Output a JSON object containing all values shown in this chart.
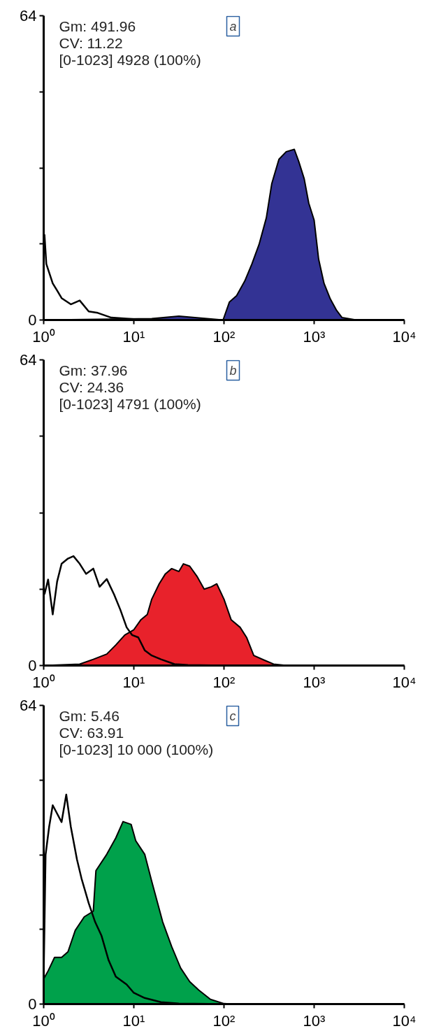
{
  "chart_data": [
    {
      "type": "area",
      "title": "a",
      "annotations": [
        "Gm: 491.96",
        "CV: 11.22",
        "[0-1023] 4928 (100%)"
      ],
      "log": "x",
      "xlim": [
        1,
        10000
      ],
      "ylim": [
        0,
        64
      ],
      "xticks": [
        {
          "value": 1,
          "label": "10⁰"
        },
        {
          "value": 10,
          "label": "10¹"
        },
        {
          "value": 100,
          "label": "10²"
        },
        {
          "value": 1000,
          "label": "10³"
        },
        {
          "value": 10000,
          "label": "10⁴"
        }
      ],
      "yticks": [
        0,
        {
          "value": 16,
          "label": null
        },
        {
          "value": 32,
          "label": null
        },
        {
          "value": 48,
          "label": null
        },
        64
      ],
      "grid": false,
      "series": [
        {
          "color": "#333394",
          "x": [
            1,
            15.8,
            31.6,
            97.7,
            115,
            138,
            170,
            204,
            245,
            295,
            339,
            407,
            490,
            603,
            676,
            776,
            871,
            1000,
            1122,
            1288,
            1514,
            1778,
            2042,
            2951,
            10000
          ],
          "values": [
            0,
            0.3,
            0.8,
            0,
            3.8,
            5.1,
            8.2,
            11.8,
            15.9,
            21.5,
            28.7,
            33.8,
            35.4,
            35.9,
            33.3,
            29.7,
            24.6,
            21,
            12.8,
            7.7,
            4.4,
            2,
            0.5,
            0,
            0
          ]
        },
        {
          "type": "line",
          "color": "#000000",
          "x": [
            1.02,
            1.07,
            1.15,
            1.26,
            1.41,
            1.58,
            2.0,
            2.51,
            3.16,
            3.98,
            5.62,
            10,
            31.6,
            10000
          ],
          "values": [
            18,
            11.8,
            10,
            7.7,
            6.2,
            4.6,
            3.3,
            4.1,
            1.8,
            1.5,
            0.5,
            0.2,
            0,
            0
          ]
        }
      ]
    },
    {
      "type": "area",
      "title": "b",
      "annotations": [
        "Gm: 37.96",
        "CV: 24.36",
        "[0-1023] 4791 (100%)"
      ],
      "log": "x",
      "xlim": [
        1,
        10000
      ],
      "ylim": [
        0,
        64
      ],
      "xticks": [
        {
          "value": 1,
          "label": "10⁰"
        },
        {
          "value": 10,
          "label": "10¹"
        },
        {
          "value": 100,
          "label": "10²"
        },
        {
          "value": 1000,
          "label": "10³"
        },
        {
          "value": 10000,
          "label": "10⁴"
        }
      ],
      "yticks": [
        0,
        {
          "value": 16,
          "label": null
        },
        {
          "value": 32,
          "label": null
        },
        {
          "value": 48,
          "label": null
        },
        64
      ],
      "grid": false,
      "series": [
        {
          "color": "#e8222b",
          "x": [
            1,
            2.51,
            3.55,
            5.01,
            6.31,
            7.94,
            10,
            12.0,
            14.1,
            15.8,
            19.1,
            22.4,
            26.3,
            31.6,
            35.5,
            41.7,
            50.1,
            60.3,
            72.4,
            83.2,
            100,
            120,
            151,
            178,
            214,
            282,
            355,
            501,
            10000
          ],
          "values": [
            0,
            0.3,
            1.3,
            2.4,
            4.3,
            6.4,
            7.5,
            9.6,
            10.7,
            13.9,
            17.1,
            19.2,
            20.3,
            19.7,
            21.3,
            20.8,
            18.7,
            16,
            16.5,
            17.1,
            13.9,
            9.6,
            8,
            5.9,
            2.1,
            1.1,
            0.3,
            0,
            0
          ]
        },
        {
          "type": "line",
          "color": "#000000",
          "x": [
            1.02,
            1.12,
            1.26,
            1.41,
            1.58,
            1.86,
            2.14,
            2.51,
            2.95,
            3.55,
            4.17,
            5.01,
            6.03,
            7.08,
            8.32,
            9.55,
            11.2,
            13.2,
            15.8,
            20,
            28.2,
            39.8,
            100,
            10000
          ],
          "values": [
            14.9,
            18,
            10.7,
            17.6,
            21.3,
            22.4,
            22.9,
            21.3,
            19.2,
            20.3,
            16.5,
            18.1,
            14.9,
            11.7,
            8,
            6.4,
            5.9,
            3.2,
            2.1,
            1.3,
            0.3,
            0.1,
            0,
            0
          ]
        }
      ]
    },
    {
      "type": "area",
      "title": "c",
      "annotations": [
        "Gm: 5.46",
        "CV: 63.91",
        "[0-1023] 10 000 (100%)"
      ],
      "log": "x",
      "xlim": [
        1,
        10000
      ],
      "ylim": [
        0,
        64
      ],
      "xticks": [
        {
          "value": 1,
          "label": "10⁰"
        },
        {
          "value": 10,
          "label": "10¹"
        },
        {
          "value": 100,
          "label": "10²"
        },
        {
          "value": 1000,
          "label": "10³"
        },
        {
          "value": 10000,
          "label": "10⁴"
        }
      ],
      "yticks": [
        0,
        {
          "value": 16,
          "label": null
        },
        {
          "value": 32,
          "label": null
        },
        {
          "value": 48,
          "label": null
        },
        64
      ],
      "grid": false,
      "series": [
        {
          "color": "#00a14b",
          "x": [
            1,
            1.12,
            1.32,
            1.58,
            1.86,
            2.24,
            2.82,
            3.55,
            3.8,
            5.01,
            6.31,
            7.59,
            9.33,
            10.5,
            13.2,
            15.8,
            20.9,
            26.3,
            33.1,
            41.7,
            52.5,
            70.8,
            100,
            126,
            10000
          ],
          "values": [
            5.4,
            7.1,
            10,
            10,
            11.2,
            15.8,
            18.7,
            19.9,
            28.6,
            32.1,
            35.6,
            39.1,
            38.5,
            35,
            32.1,
            26.3,
            17.6,
            12.3,
            7.7,
            4.8,
            3,
            1,
            0.1,
            0,
            0
          ]
        },
        {
          "type": "line",
          "color": "#000000",
          "x": [
            1,
            1.05,
            1.15,
            1.26,
            1.41,
            1.58,
            1.78,
            2.0,
            2.34,
            2.63,
            3.16,
            3.72,
            4.37,
            5.25,
            6.31,
            8.32,
            10,
            13.2,
            20,
            31.6,
            100,
            10000
          ],
          "values": [
            5.9,
            32,
            38,
            42.6,
            40.8,
            39,
            44.9,
            38,
            31,
            26.9,
            21.6,
            17.6,
            14.7,
            9.4,
            5.9,
            4.2,
            2.4,
            1.3,
            0.4,
            0.1,
            0,
            0
          ]
        }
      ]
    }
  ]
}
